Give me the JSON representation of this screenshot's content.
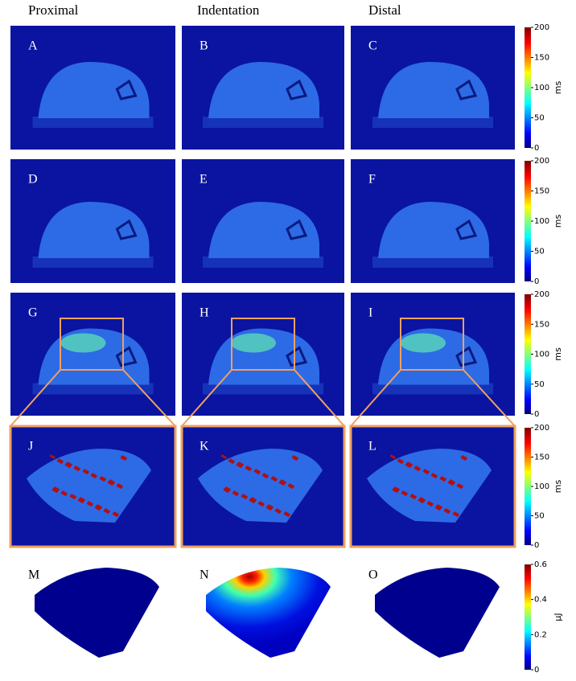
{
  "headers": [
    "Proximal",
    "Indentation",
    "Distal"
  ],
  "panels": [
    "A",
    "B",
    "C",
    "D",
    "E",
    "F",
    "G",
    "H",
    "I",
    "J",
    "K",
    "L",
    "M",
    "N",
    "O"
  ],
  "colorbars": [
    {
      "label": "ms",
      "lim": [
        0,
        200
      ],
      "ticks": [
        0,
        50,
        100,
        150,
        200
      ]
    },
    {
      "label": "ms",
      "lim": [
        0,
        200
      ],
      "ticks": [
        0,
        50,
        100,
        150,
        200
      ]
    },
    {
      "label": "ms",
      "lim": [
        0,
        200
      ],
      "ticks": [
        0,
        50,
        100,
        150,
        200
      ]
    },
    {
      "label": "ms",
      "lim": [
        0,
        200
      ],
      "ticks": [
        0,
        50,
        100,
        150,
        200
      ]
    },
    {
      "label": "μJ",
      "lim": [
        0,
        0.6
      ],
      "ticks": [
        0,
        0.2,
        0.4,
        0.6
      ]
    }
  ]
}
